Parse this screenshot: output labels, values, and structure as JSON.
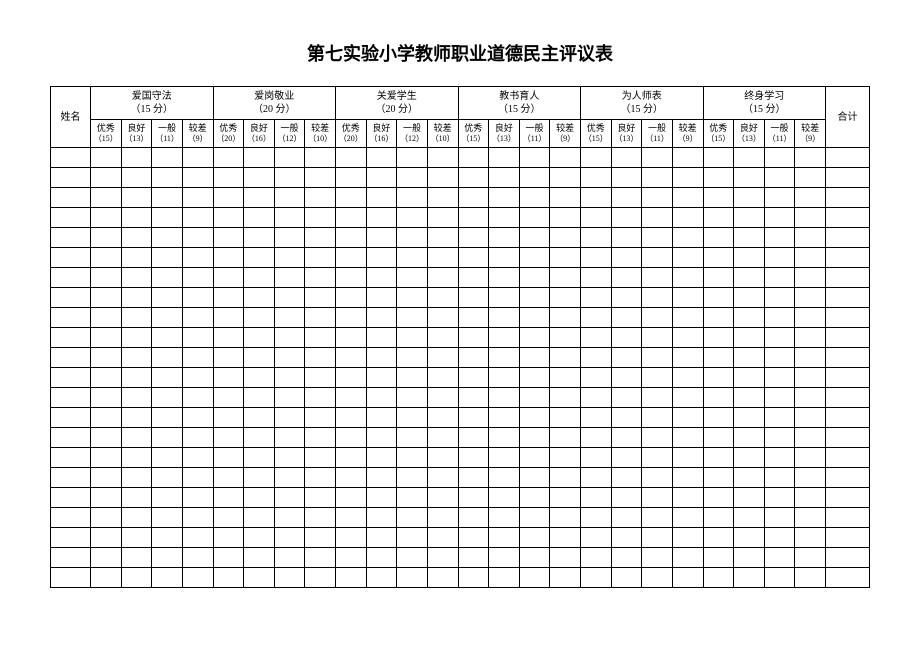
{
  "title": "第七实验小学教师职业道德民主评议表",
  "name_header": "姓名",
  "total_header": "合计",
  "categories": [
    {
      "label": "爱国守法",
      "score": "（15 分）",
      "subs": [
        {
          "label": "优秀",
          "score": "（15）"
        },
        {
          "label": "良好",
          "score": "（13）"
        },
        {
          "label": "一般",
          "score": "（11）"
        },
        {
          "label": "较差",
          "score": "（9）"
        }
      ]
    },
    {
      "label": "爱岗敬业",
      "score": "（20 分）",
      "subs": [
        {
          "label": "优秀",
          "score": "（20）"
        },
        {
          "label": "良好",
          "score": "（16）"
        },
        {
          "label": "一般",
          "score": "（12）"
        },
        {
          "label": "较差",
          "score": "（10）"
        }
      ]
    },
    {
      "label": "关爱学生",
      "score": "（20 分）",
      "subs": [
        {
          "label": "优秀",
          "score": "（20）"
        },
        {
          "label": "良好",
          "score": "（16）"
        },
        {
          "label": "一般",
          "score": "（12）"
        },
        {
          "label": "较差",
          "score": "（10）"
        }
      ]
    },
    {
      "label": "教书育人",
      "score": "（15 分）",
      "subs": [
        {
          "label": "优秀",
          "score": "（15）"
        },
        {
          "label": "良好",
          "score": "（13）"
        },
        {
          "label": "一般",
          "score": "（11）"
        },
        {
          "label": "较差",
          "score": "（9）"
        }
      ]
    },
    {
      "label": "为人师表",
      "score": "（15 分）",
      "subs": [
        {
          "label": "优秀",
          "score": "（15）"
        },
        {
          "label": "良好",
          "score": "（13）"
        },
        {
          "label": "一般",
          "score": "（11）"
        },
        {
          "label": "较差",
          "score": "（9）"
        }
      ]
    },
    {
      "label": "终身学习",
      "score": "（15 分）",
      "subs": [
        {
          "label": "优秀",
          "score": "（15）"
        },
        {
          "label": "良好",
          "score": "（13）"
        },
        {
          "label": "一般",
          "score": "（11）"
        },
        {
          "label": "较差",
          "score": "（9）"
        }
      ]
    }
  ],
  "body_rows": 22,
  "colors": {
    "background": "#ffffff",
    "border": "#000000",
    "text": "#000000"
  }
}
